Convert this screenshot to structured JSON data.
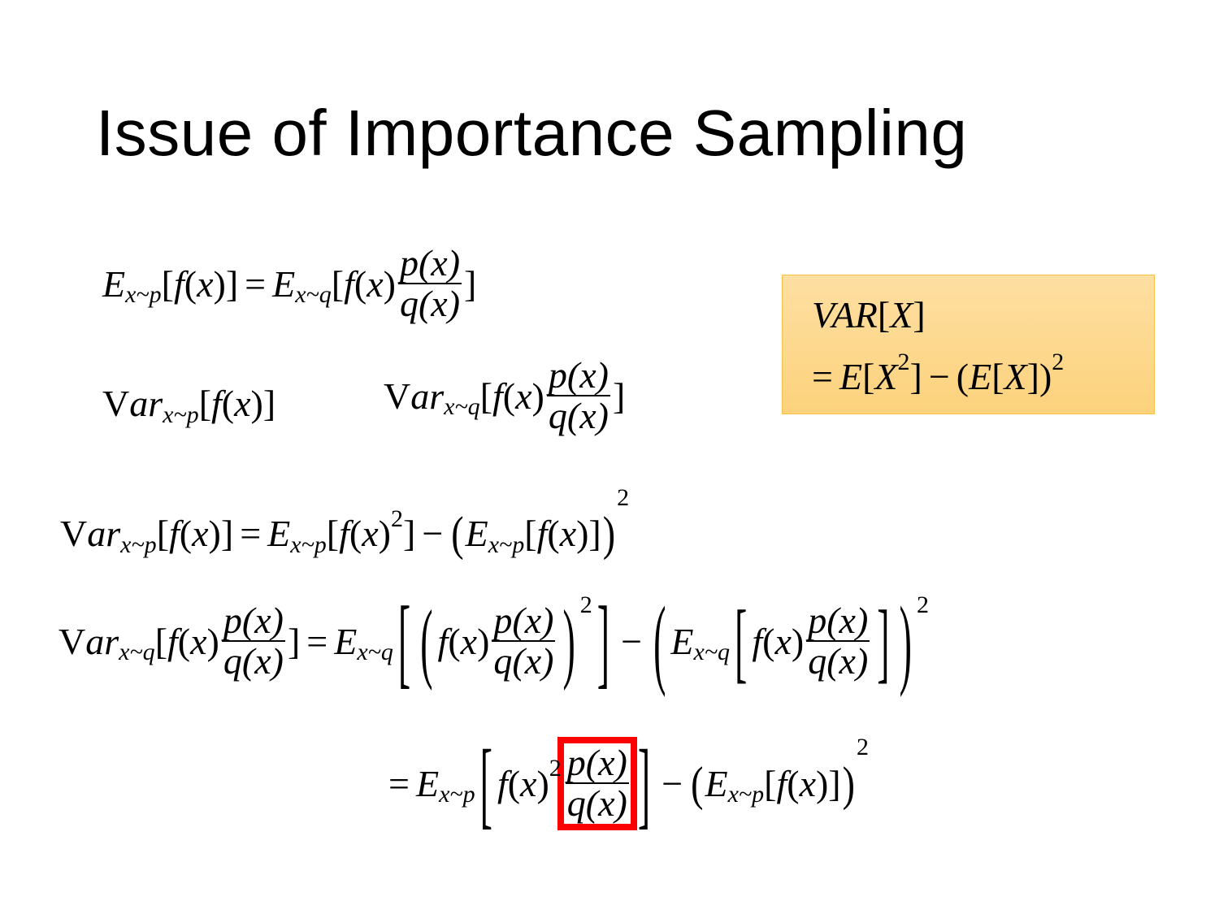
{
  "slide": {
    "title": "Issue of Importance Sampling",
    "accent_box_color": "#fdd98f",
    "highlight_color": "#ff0000"
  },
  "formulas": {
    "eq1": [
      {
        "t": "E"
      },
      {
        "sub": "x~p"
      },
      {
        "u": "["
      },
      {
        "t": "f"
      },
      {
        "u": "("
      },
      {
        "t": "x"
      },
      {
        "u": ")]"
      },
      {
        "op": "="
      },
      {
        "t": "E"
      },
      {
        "sub": "x~q"
      },
      {
        "u": "["
      },
      {
        "t": "f"
      },
      {
        "u": "("
      },
      {
        "t": "x"
      },
      {
        "u": ")"
      },
      {
        "frac": [
          "p(x)",
          "q(x)"
        ]
      },
      {
        "u": "]"
      }
    ],
    "var_p": [
      {
        "u": "V"
      },
      {
        "t": "ar"
      },
      {
        "sub": "x~p"
      },
      {
        "u": "["
      },
      {
        "t": "f"
      },
      {
        "u": "("
      },
      {
        "t": "x"
      },
      {
        "u": ")]"
      }
    ],
    "var_q": [
      {
        "u": "V"
      },
      {
        "t": "ar"
      },
      {
        "sub": "x~q"
      },
      {
        "u": "["
      },
      {
        "t": "f"
      },
      {
        "u": "("
      },
      {
        "t": "x"
      },
      {
        "u": ")"
      },
      {
        "frac": [
          "p(x)",
          "q(x)"
        ]
      },
      {
        "u": "]"
      }
    ],
    "box_line1": [
      {
        "t": "VAR"
      },
      {
        "u": "["
      },
      {
        "t": "X"
      },
      {
        "u": "]"
      }
    ],
    "box_line2": [
      {
        "op": "="
      },
      {
        "t": "E"
      },
      {
        "u": "["
      },
      {
        "t": "X"
      },
      {
        "sup": "2"
      },
      {
        "u": "]"
      },
      {
        "op": "−"
      },
      {
        "u": "("
      },
      {
        "t": "E"
      },
      {
        "u": "["
      },
      {
        "t": "X"
      },
      {
        "u": "])"
      },
      {
        "sup": "2"
      }
    ],
    "eq3": [
      {
        "u": "V"
      },
      {
        "t": "ar"
      },
      {
        "sub": "x~p"
      },
      {
        "u": "["
      },
      {
        "t": "f"
      },
      {
        "u": "("
      },
      {
        "t": "x"
      },
      {
        "u": ")]"
      },
      {
        "op": "="
      },
      {
        "t": "E"
      },
      {
        "sub": "x~p"
      },
      {
        "u": "["
      },
      {
        "t": "f"
      },
      {
        "u": "("
      },
      {
        "t": "x"
      },
      {
        "u": ")"
      },
      {
        "sup": "2"
      },
      {
        "u": "]"
      },
      {
        "op": "−"
      },
      {
        "big": "(",
        "s": 1.3
      },
      {
        "t": "E"
      },
      {
        "sub": "x~p"
      },
      {
        "u": "["
      },
      {
        "t": "f"
      },
      {
        "u": "("
      },
      {
        "t": "x"
      },
      {
        "u": ")]"
      },
      {
        "big": ")",
        "s": 1.3
      },
      {
        "supbig": "2"
      }
    ],
    "eq4": [
      {
        "u": "V"
      },
      {
        "t": "ar"
      },
      {
        "sub": "x~q"
      },
      {
        "u": "["
      },
      {
        "t": "f"
      },
      {
        "u": "("
      },
      {
        "t": "x"
      },
      {
        "u": ")"
      },
      {
        "frac": [
          "p(x)",
          "q(x)"
        ]
      },
      {
        "u": "]"
      },
      {
        "op": "="
      },
      {
        "t": "E"
      },
      {
        "sub": "x~q"
      },
      {
        "big": "[",
        "s": 2.7
      },
      {
        "big": "(",
        "s": 2.4
      },
      {
        "t": "f"
      },
      {
        "u": "("
      },
      {
        "t": "x"
      },
      {
        "u": ")"
      },
      {
        "frac": [
          "p(x)",
          "q(x)"
        ]
      },
      {
        "big": ")",
        "s": 2.4
      },
      {
        "supbig": "2"
      },
      {
        "big": "]",
        "s": 2.7
      },
      {
        "op": "−"
      },
      {
        "big": "(",
        "s": 2.7
      },
      {
        "t": "E"
      },
      {
        "sub": "x~q"
      },
      {
        "big": "[",
        "s": 2.4
      },
      {
        "t": "f"
      },
      {
        "u": "("
      },
      {
        "t": "x"
      },
      {
        "u": ")"
      },
      {
        "frac": [
          "p(x)",
          "q(x)"
        ]
      },
      {
        "big": "]",
        "s": 2.4
      },
      {
        "big": ")",
        "s": 2.7
      },
      {
        "supbig": "2"
      }
    ],
    "eq5": [
      {
        "op": "="
      },
      {
        "t": "E"
      },
      {
        "sub": "x~p"
      },
      {
        "big": "[",
        "s": 2.6
      },
      {
        "t": "f"
      },
      {
        "u": "("
      },
      {
        "t": "x"
      },
      {
        "u": ")"
      },
      {
        "sup": "2"
      },
      {
        "frac": [
          "p(x)",
          "q(x)"
        ],
        "boxed": true
      },
      {
        "big": "]",
        "s": 2.6
      },
      {
        "op": "−"
      },
      {
        "big": "(",
        "s": 1.3
      },
      {
        "t": "E"
      },
      {
        "sub": "x~p"
      },
      {
        "u": "["
      },
      {
        "t": "f"
      },
      {
        "u": "("
      },
      {
        "t": "x"
      },
      {
        "u": ")]"
      },
      {
        "big": ")",
        "s": 1.3
      },
      {
        "supbig": "2"
      }
    ]
  }
}
